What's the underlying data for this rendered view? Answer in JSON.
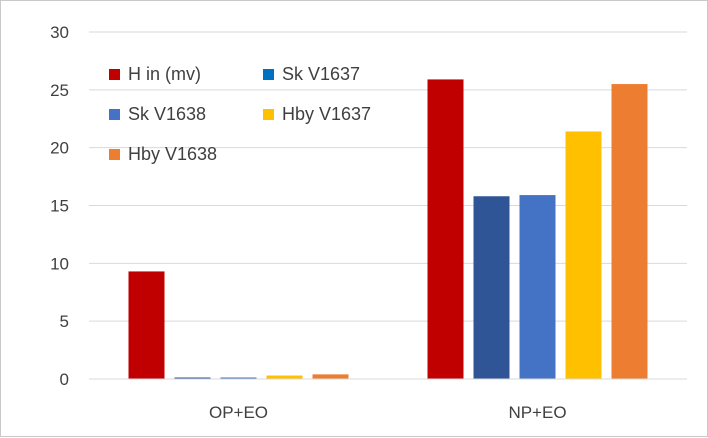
{
  "chart_data": {
    "type": "bar",
    "categories": [
      "OP+EO",
      "NP+EO"
    ],
    "series": [
      {
        "name": "H in (mv)",
        "values": [
          9.3,
          25.9
        ],
        "color": "#C00000"
      },
      {
        "name": "Sk V1637",
        "values": [
          0.1,
          15.8
        ],
        "color": "#2F5597"
      },
      {
        "name": "Sk V1638",
        "values": [
          0.1,
          15.9
        ],
        "color": "#4472C4"
      },
      {
        "name": "Hby V1637",
        "values": [
          0.3,
          21.4
        ],
        "color": "#FFC000"
      },
      {
        "name": "Hby V1638",
        "values": [
          0.4,
          25.5
        ],
        "color": "#ED7D31"
      }
    ],
    "legend_colors": [
      "#C00000",
      "#0070C0",
      "#4472C4",
      "#FFC000",
      "#ED7D31"
    ],
    "ylim": [
      0,
      30
    ],
    "yticks": [
      0,
      5,
      10,
      15,
      20,
      25,
      30
    ],
    "grid": true,
    "grid_color": "#D9D9D9",
    "axis_color": "#D9D9D9",
    "legend_position": "top-left",
    "title": "",
    "xlabel": "",
    "ylabel": ""
  }
}
